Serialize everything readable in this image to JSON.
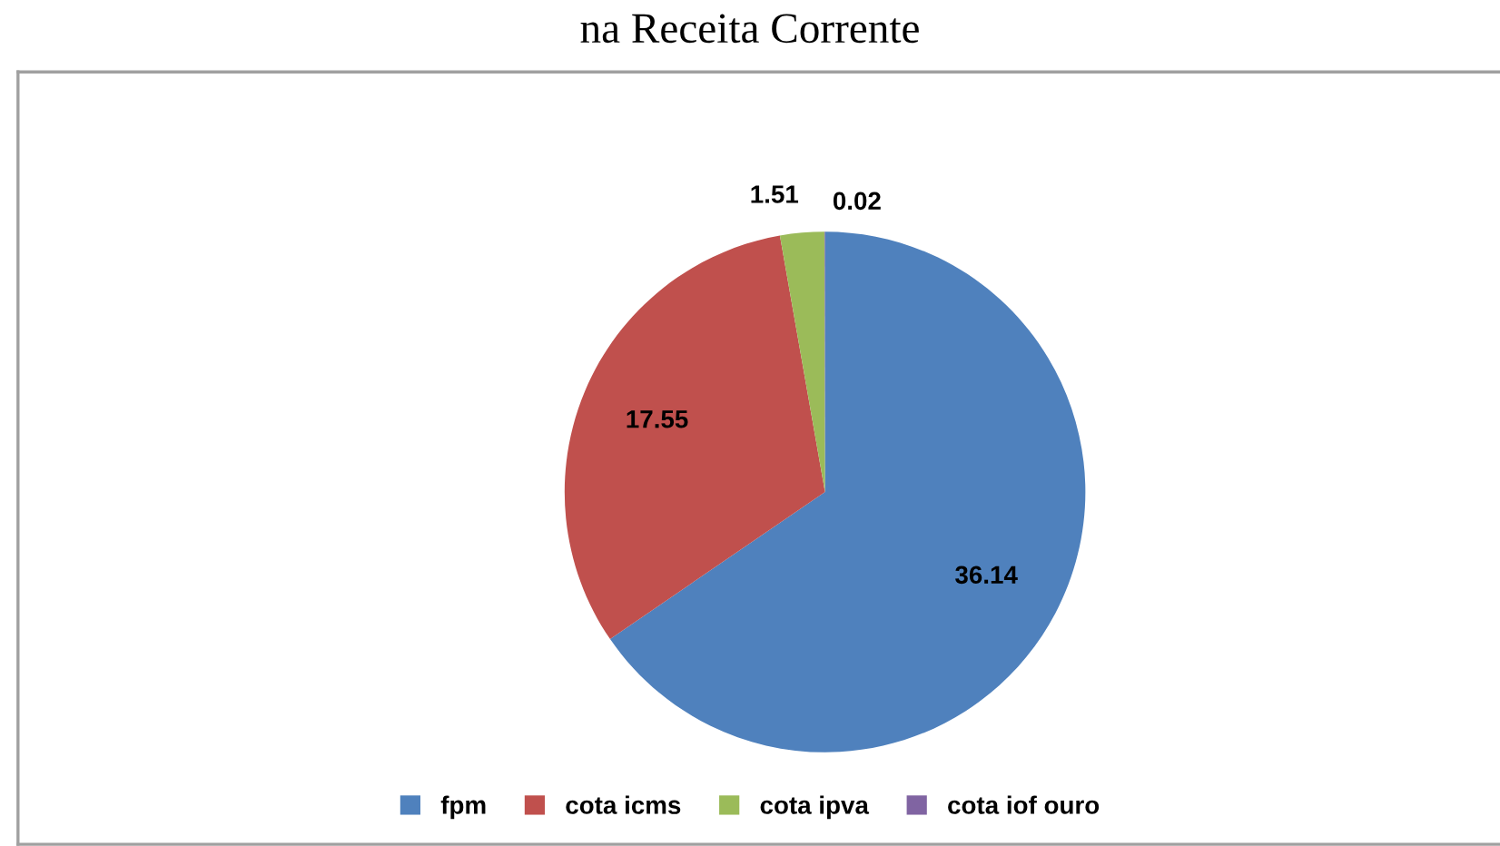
{
  "chart_data": {
    "type": "pie",
    "title": "na Receita Corrente",
    "categories": [
      "fpm",
      "cota icms",
      "cota ipva",
      "cota iof ouro"
    ],
    "values": [
      36.14,
      17.55,
      1.51,
      0.02
    ],
    "colors": [
      "#4f81bd",
      "#c0504d",
      "#9bbb59",
      "#8064a2"
    ],
    "data_labels": true,
    "legend": "bottom"
  }
}
